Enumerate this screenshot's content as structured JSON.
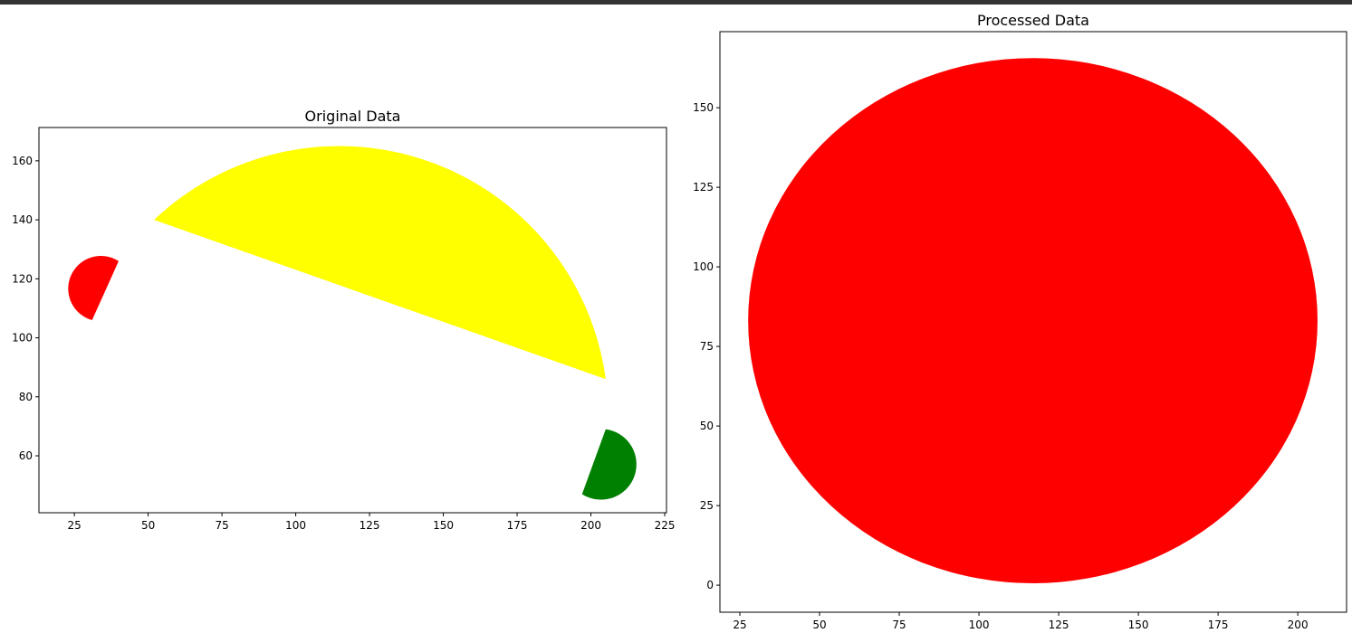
{
  "chart_data": [
    {
      "type": "patches",
      "title": "Original Data",
      "xlim": [
        13,
        225.6
      ],
      "ylim": [
        40.7,
        171.3
      ],
      "xticks": [
        25,
        50,
        75,
        100,
        125,
        150,
        175,
        200,
        225
      ],
      "yticks": [
        60,
        80,
        100,
        120,
        140,
        160
      ],
      "patches": [
        {
          "kind": "segment",
          "color": "#ffff00",
          "points": [
            [
              52,
              140
            ],
            [
              116,
              165
            ],
            [
              205,
              86
            ]
          ]
        },
        {
          "kind": "segment",
          "color": "#ff0000",
          "points": [
            [
              40,
              126
            ],
            [
              23,
              118
            ],
            [
              31,
              106
            ]
          ]
        },
        {
          "kind": "segment",
          "color": "#008000",
          "points": [
            [
              205,
              69
            ],
            [
              215,
              54
            ],
            [
              197,
              47
            ]
          ]
        }
      ]
    },
    {
      "type": "patches",
      "title": "Processed Data",
      "xlim": [
        18.75,
        215.3
      ],
      "ylim": [
        -8.5,
        173.9
      ],
      "xticks": [
        25,
        50,
        75,
        100,
        125,
        150,
        175,
        200
      ],
      "yticks": [
        0,
        25,
        50,
        75,
        100,
        125,
        150
      ],
      "patches": [
        {
          "kind": "ellipse",
          "color": "#ff0000",
          "center": [
            116.9,
            83.1
          ],
          "radii": [
            89.3,
            82.5
          ]
        }
      ]
    }
  ]
}
